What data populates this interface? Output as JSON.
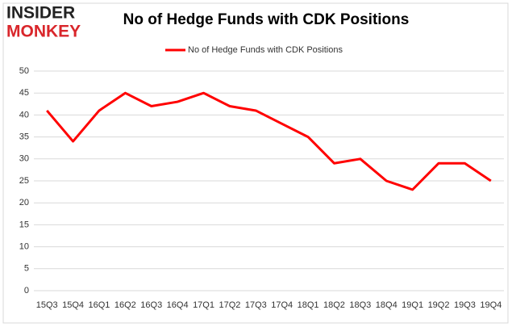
{
  "logo": {
    "line1": "INSIDER",
    "line2": "MONKEY"
  },
  "chart_data": {
    "type": "line",
    "title": "No of Hedge Funds with CDK Positions",
    "categories": [
      "15Q3",
      "15Q4",
      "16Q1",
      "16Q2",
      "16Q3",
      "16Q4",
      "17Q1",
      "17Q2",
      "17Q3",
      "17Q4",
      "18Q1",
      "18Q2",
      "18Q3",
      "18Q4",
      "19Q1",
      "19Q2",
      "19Q3",
      "19Q4"
    ],
    "series": [
      {
        "name": "No of Hedge Funds with CDK Positions",
        "color": "#ff0000",
        "values": [
          41,
          34,
          41,
          45,
          42,
          43,
          45,
          42,
          41,
          38,
          35,
          29,
          30,
          25,
          23,
          29,
          29,
          25
        ]
      }
    ],
    "ylim": [
      0,
      50
    ],
    "yticks": [
      0,
      5,
      10,
      15,
      20,
      25,
      30,
      35,
      40,
      45,
      50
    ],
    "grid": true,
    "legend": "top"
  }
}
